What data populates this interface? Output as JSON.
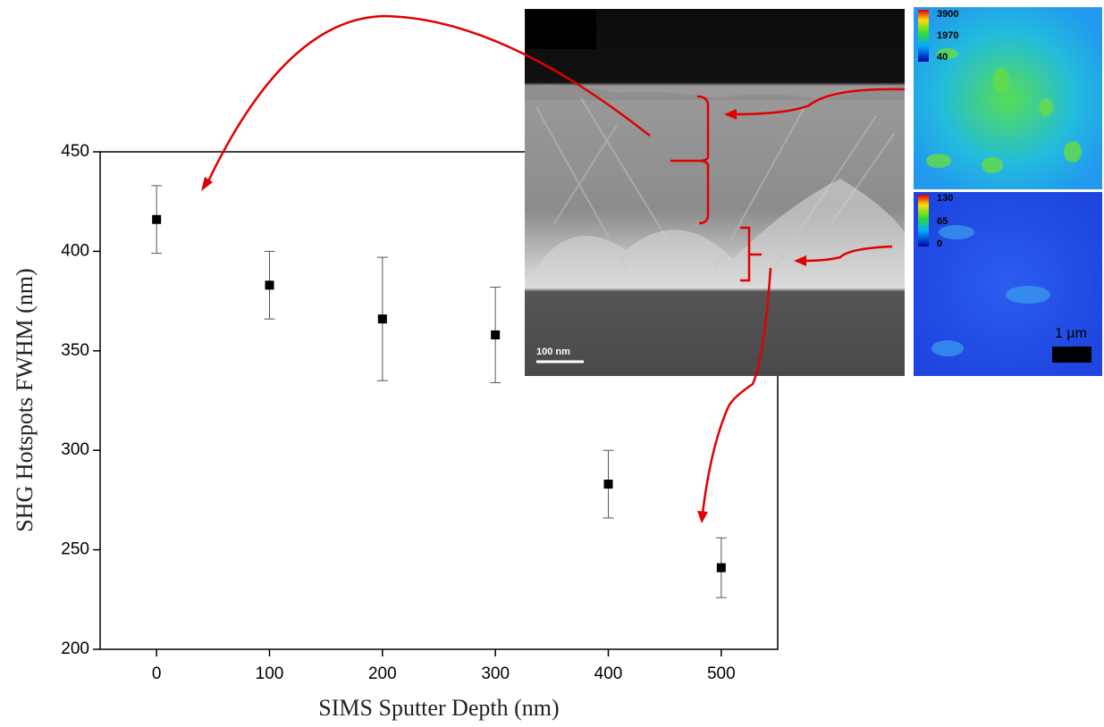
{
  "chart_data": {
    "type": "scatter",
    "xlabel": "SIMS Sputter Depth (nm)",
    "ylabel": "SHG Hotspots FWHM (nm)",
    "xlim": [
      -50,
      550
    ],
    "xticks": [
      0,
      100,
      200,
      300,
      400,
      500
    ],
    "ylim": [
      200,
      450
    ],
    "yticks": [
      200,
      250,
      300,
      350,
      400,
      450
    ],
    "x": [
      0,
      100,
      200,
      300,
      400,
      500
    ],
    "series": [
      {
        "color": "#000000",
        "values": [
          416,
          383,
          366,
          358,
          283,
          241
        ],
        "errors": [
          17,
          17,
          31,
          24,
          17,
          15
        ]
      }
    ],
    "annotations": [
      "100 nm",
      "3900",
      "1970",
      "40",
      "130",
      "65",
      "0",
      "1 µm"
    ]
  }
}
